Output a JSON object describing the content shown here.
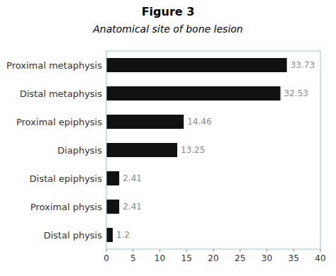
{
  "chart_data": {
    "type": "bar",
    "orientation": "horizontal",
    "title": "Figure 3",
    "subtitle": "Anatomical site of bone lesion",
    "categories": [
      "Proximal metaphysis",
      "Distal metaphysis",
      "Proximal epiphysis",
      "Diaphysis",
      "Distal epiphysis",
      "Proximal physis",
      "Distal physis"
    ],
    "values": [
      33.73,
      32.53,
      14.46,
      13.25,
      2.41,
      2.41,
      1.2
    ],
    "color": "#111111",
    "xlim": [
      0,
      40
    ],
    "xticks": [
      0,
      5,
      10,
      15,
      20,
      25,
      30,
      35,
      40
    ],
    "data_labels": true,
    "grid": false
  }
}
